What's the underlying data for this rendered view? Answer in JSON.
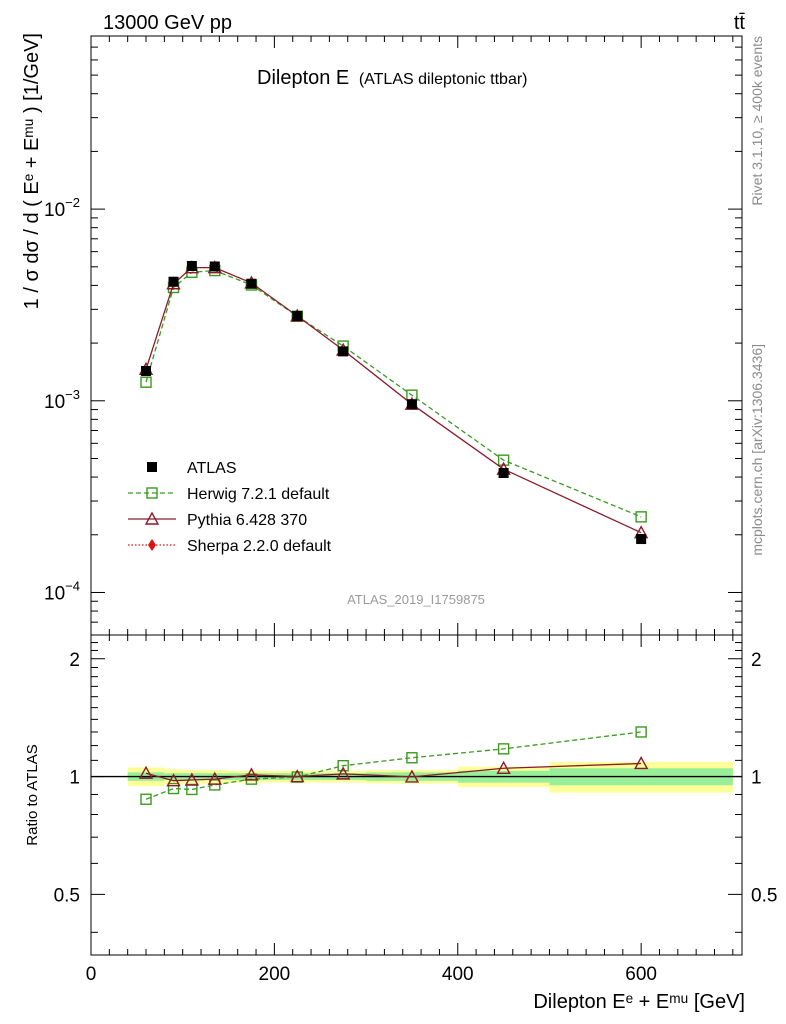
{
  "header": {
    "energy_label": "13000 GeV pp",
    "process_label": "tt̄"
  },
  "side_labels": {
    "rivet": "Rivet 3.1.10, ≥ 400k events",
    "mcplots": "mcplots.cern.ch [arXiv:1306.3436]"
  },
  "chart_data": {
    "type": "line",
    "title": "Dilepton E",
    "subtitle": "(ATLAS dileptonic ttbar)",
    "analysis_id": "ATLAS_2019_I1759875",
    "xlabel": "Dilepton Eᵉ + Eᵐᵘ [GeV]",
    "ylabel_main": "1 / σ dσ / d ( Eᵉ + Eᵐᵘ ) [1/GeV]",
    "ylabel_ratio": "Ratio to ATLAS",
    "xlim": [
      0,
      710
    ],
    "ylim_main": [
      6e-05,
      0.08
    ],
    "yscale_main": "log",
    "ylim_ratio": [
      0.35,
      2.3
    ],
    "yscale_ratio": "log",
    "x_ticks": [
      "0",
      "200",
      "400",
      "600"
    ],
    "y_ticks_main": [
      "10^-4",
      "10^-3",
      "10^-2"
    ],
    "y_ticks_ratio": [
      "0.5",
      "1",
      "2"
    ],
    "legend_position": "lower-left",
    "series": [
      {
        "name": "ATLAS",
        "color": "#000000",
        "marker": "filled-square",
        "x": [
          60,
          90,
          110,
          135,
          175,
          225,
          275,
          350,
          450,
          600
        ],
        "y": [
          0.00143,
          0.00418,
          0.00505,
          0.00502,
          0.00408,
          0.00277,
          0.00181,
          0.00096,
          0.00042,
          0.00019
        ]
      },
      {
        "name": "Herwig 7.2.1 default",
        "color": "#3a9a20",
        "marker": "open-square",
        "line": "dashed",
        "x": [
          60,
          90,
          110,
          135,
          175,
          225,
          275,
          350,
          450,
          600
        ],
        "y": [
          0.00125,
          0.0039,
          0.00468,
          0.00478,
          0.00402,
          0.00276,
          0.00193,
          0.00107,
          0.00049,
          0.000248
        ]
      },
      {
        "name": "Pythia 6.428 370",
        "color": "#8b1a2b",
        "marker": "open-triangle",
        "line": "solid",
        "x": [
          60,
          90,
          110,
          135,
          175,
          225,
          275,
          350,
          450,
          600
        ],
        "y": [
          0.00146,
          0.00408,
          0.00495,
          0.00495,
          0.00412,
          0.00277,
          0.00184,
          0.00096,
          0.00044,
          0.000205
        ]
      },
      {
        "name": "Sherpa 2.2.0 default",
        "color": "#dd1111",
        "marker": "filled-diamond",
        "line": "dotted",
        "x": [],
        "y": []
      }
    ],
    "ratio_series": [
      {
        "name": "Herwig 7.2.1 default",
        "x": [
          60,
          90,
          110,
          135,
          175,
          225,
          275,
          350,
          450,
          600
        ],
        "y": [
          0.875,
          0.932,
          0.927,
          0.952,
          0.985,
          0.997,
          1.066,
          1.117,
          1.177,
          1.3
        ]
      },
      {
        "name": "Pythia 6.428 370",
        "x": [
          60,
          90,
          110,
          135,
          175,
          225,
          275,
          350,
          450,
          600
        ],
        "y": [
          1.02,
          0.976,
          0.98,
          0.985,
          1.01,
          1.0,
          1.016,
          0.998,
          1.05,
          1.08
        ]
      }
    ],
    "uncertainty_bands": [
      {
        "x0": 40,
        "x1": 80,
        "stat": 0.025,
        "total": 0.055
      },
      {
        "x0": 80,
        "x1": 100,
        "stat": 0.02,
        "total": 0.045
      },
      {
        "x0": 100,
        "x1": 120,
        "stat": 0.02,
        "total": 0.04
      },
      {
        "x0": 120,
        "x1": 150,
        "stat": 0.02,
        "total": 0.04
      },
      {
        "x0": 150,
        "x1": 200,
        "stat": 0.02,
        "total": 0.035
      },
      {
        "x0": 200,
        "x1": 250,
        "stat": 0.02,
        "total": 0.035
      },
      {
        "x0": 250,
        "x1": 300,
        "stat": 0.02,
        "total": 0.035
      },
      {
        "x0": 300,
        "x1": 400,
        "stat": 0.025,
        "total": 0.04
      },
      {
        "x0": 400,
        "x1": 500,
        "stat": 0.035,
        "total": 0.06
      },
      {
        "x0": 500,
        "x1": 700,
        "stat": 0.05,
        "total": 0.09
      }
    ]
  }
}
